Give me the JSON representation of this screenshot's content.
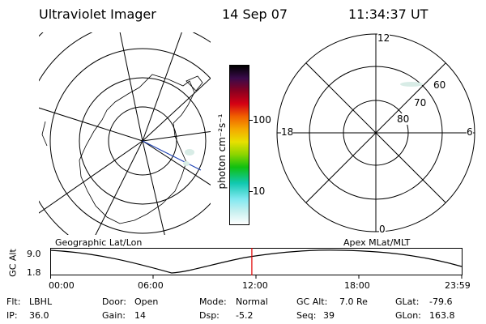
{
  "header": {
    "instrument": "Ultraviolet Imager",
    "date": "14 Sep 07",
    "time": "11:34:37 UT"
  },
  "colorbar": {
    "label": "photon cm⁻²s⁻¹",
    "ticks": [
      "100",
      "10"
    ]
  },
  "polar_plot": {
    "mlt_labels": {
      "top": "12",
      "left": "18",
      "right": "6",
      "bottom": "0"
    },
    "mlat_labels": [
      "60",
      "70",
      "80"
    ]
  },
  "panel_labels": {
    "left": "Geographic Lat/Lon",
    "right": "Apex MLat/MLT"
  },
  "timeline": {
    "ylabel": "GC Alt",
    "y_ticks": [
      "9.0",
      "1.8"
    ],
    "x_ticks": [
      "00:00",
      "06:00",
      "12:00",
      "18:00",
      "23:59"
    ],
    "current_fraction": 0.49
  },
  "status": {
    "row1": [
      {
        "key": "Flt:",
        "value": "LBHL"
      },
      {
        "key": "Door:",
        "value": "Open"
      },
      {
        "key": "Mode:",
        "value": "Normal"
      },
      {
        "key": "GC Alt:",
        "value": "7.0 Re"
      },
      {
        "key": "GLat:",
        "value": "-79.6"
      }
    ],
    "row2": [
      {
        "key": "IP:",
        "value": "36.0"
      },
      {
        "key": "Gain:",
        "value": "14"
      },
      {
        "key": "Dsp:",
        "value": "-5.2"
      },
      {
        "key": "Seq:",
        "value": "39"
      },
      {
        "key": "GLon:",
        "value": "163.8"
      }
    ]
  }
}
